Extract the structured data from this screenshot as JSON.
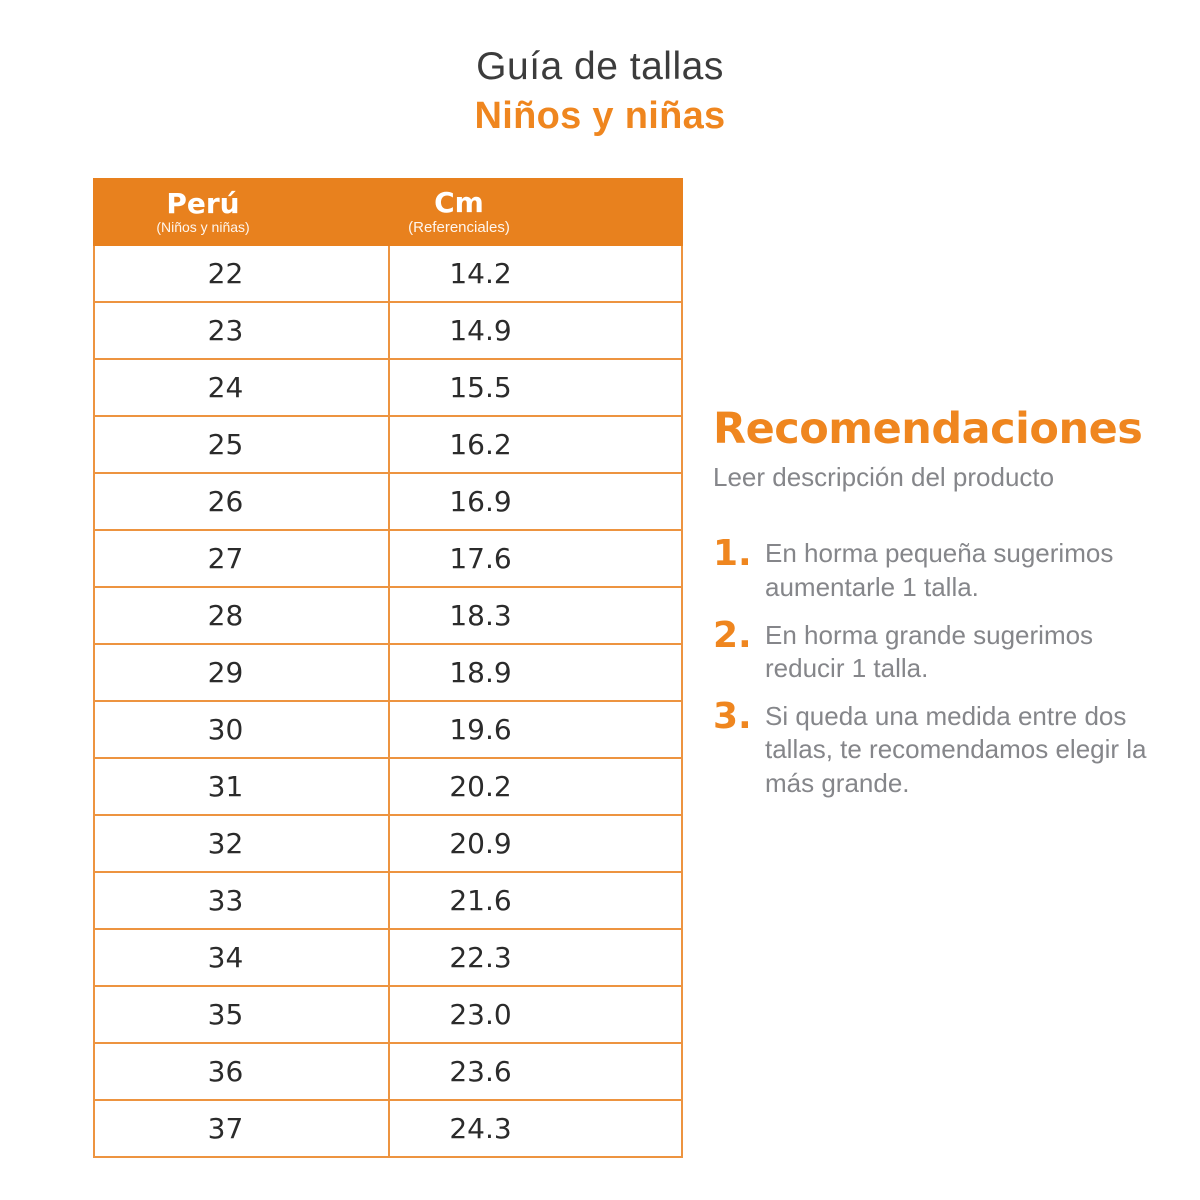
{
  "page": {
    "title": "Guía de tallas",
    "subtitle": "Niños y niñas"
  },
  "colors": {
    "page_bg": "#FFFFFF",
    "accent_orange": "#EF861F",
    "header_orange": "#E8811E",
    "border_orange": "#ED9440",
    "title_gray": "#3C3C3C",
    "text_gray": "#85868A"
  },
  "table": {
    "columns": [
      {
        "label": "Perú",
        "sublabel": "(Niños y niñas)"
      },
      {
        "label": "Cm",
        "sublabel": "(Referenciales)"
      }
    ],
    "rows": [
      {
        "peru": "22",
        "cm": "14.2"
      },
      {
        "peru": "23",
        "cm": "14.9"
      },
      {
        "peru": "24",
        "cm": "15.5"
      },
      {
        "peru": "25",
        "cm": "16.2"
      },
      {
        "peru": "26",
        "cm": "16.9"
      },
      {
        "peru": "27",
        "cm": "17.6"
      },
      {
        "peru": "28",
        "cm": "18.3"
      },
      {
        "peru": "29",
        "cm": "18.9"
      },
      {
        "peru": "30",
        "cm": "19.6"
      },
      {
        "peru": "31",
        "cm": "20.2"
      },
      {
        "peru": "32",
        "cm": "20.9"
      },
      {
        "peru": "33",
        "cm": "21.6"
      },
      {
        "peru": "34",
        "cm": "22.3"
      },
      {
        "peru": "35",
        "cm": "23.0"
      },
      {
        "peru": "36",
        "cm": "23.6"
      },
      {
        "peru": "37",
        "cm": "24.3"
      }
    ]
  },
  "recommendations": {
    "heading": "Recomendaciones",
    "subheading": "Leer descripción del producto",
    "items": [
      {
        "num": "1.",
        "text": "En horma pequeña sugerimos aumentarle 1 talla."
      },
      {
        "num": "2.",
        "text": "En horma grande sugerimos reducir 1 talla."
      },
      {
        "num": "3.",
        "text": "Si queda una medida entre dos tallas, te recomendamos elegir la más grande."
      }
    ]
  }
}
